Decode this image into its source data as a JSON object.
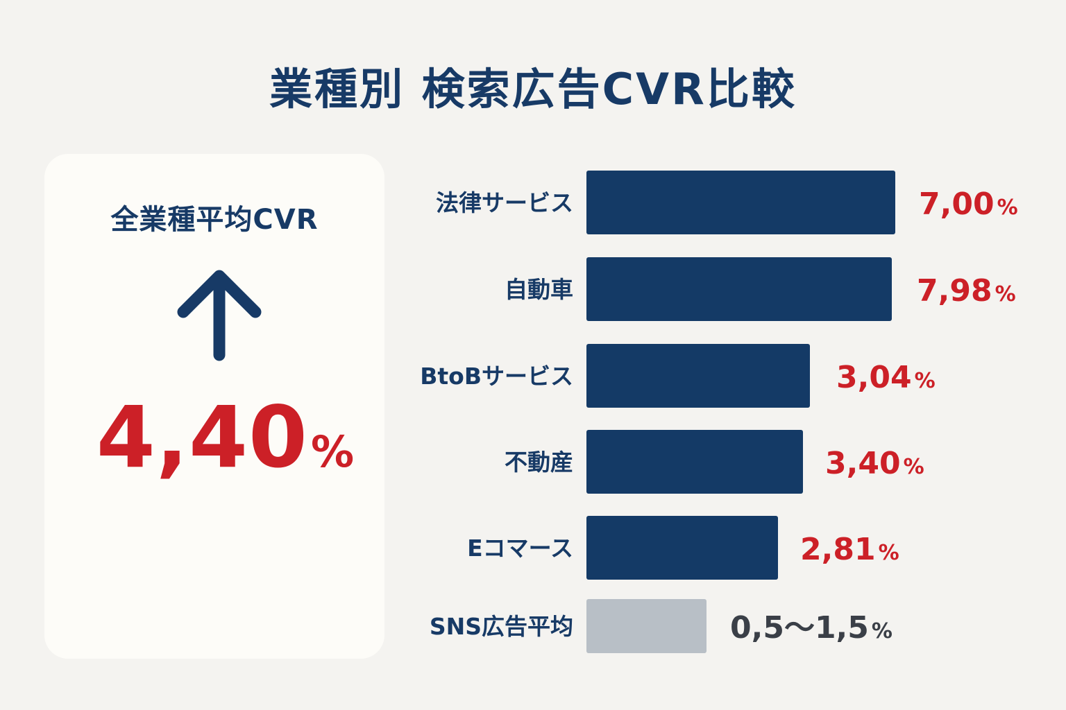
{
  "title": "業種別 検索広告CVR比較",
  "summary": {
    "label": "全業種平均CVR",
    "value": "4,40",
    "unit": "%",
    "icon": "up-arrow-icon"
  },
  "colors": {
    "navy": "#143a66",
    "red": "#cc2027",
    "gray_bar": "#b8bfc6",
    "gray_text": "#3a3f47",
    "card": "#fdfcf8",
    "background": "#f4f3f0"
  },
  "chart_data": {
    "type": "bar",
    "orientation": "horizontal",
    "categories": [
      "法律サービス",
      "自動車",
      "BtoBサービス",
      "不動産",
      "Eコマース",
      "SNS広告平均"
    ],
    "values": [
      7.0,
      7.98,
      3.04,
      3.4,
      2.81,
      null
    ],
    "range": [
      null,
      null,
      null,
      null,
      null,
      [
        0.5,
        1.5
      ]
    ],
    "labels": [
      "7,00",
      "7,98",
      "3,04",
      "3,40",
      "2,81",
      "0,5～1,5"
    ],
    "unit": "%",
    "highlight": [
      true,
      true,
      true,
      true,
      true,
      false
    ]
  }
}
